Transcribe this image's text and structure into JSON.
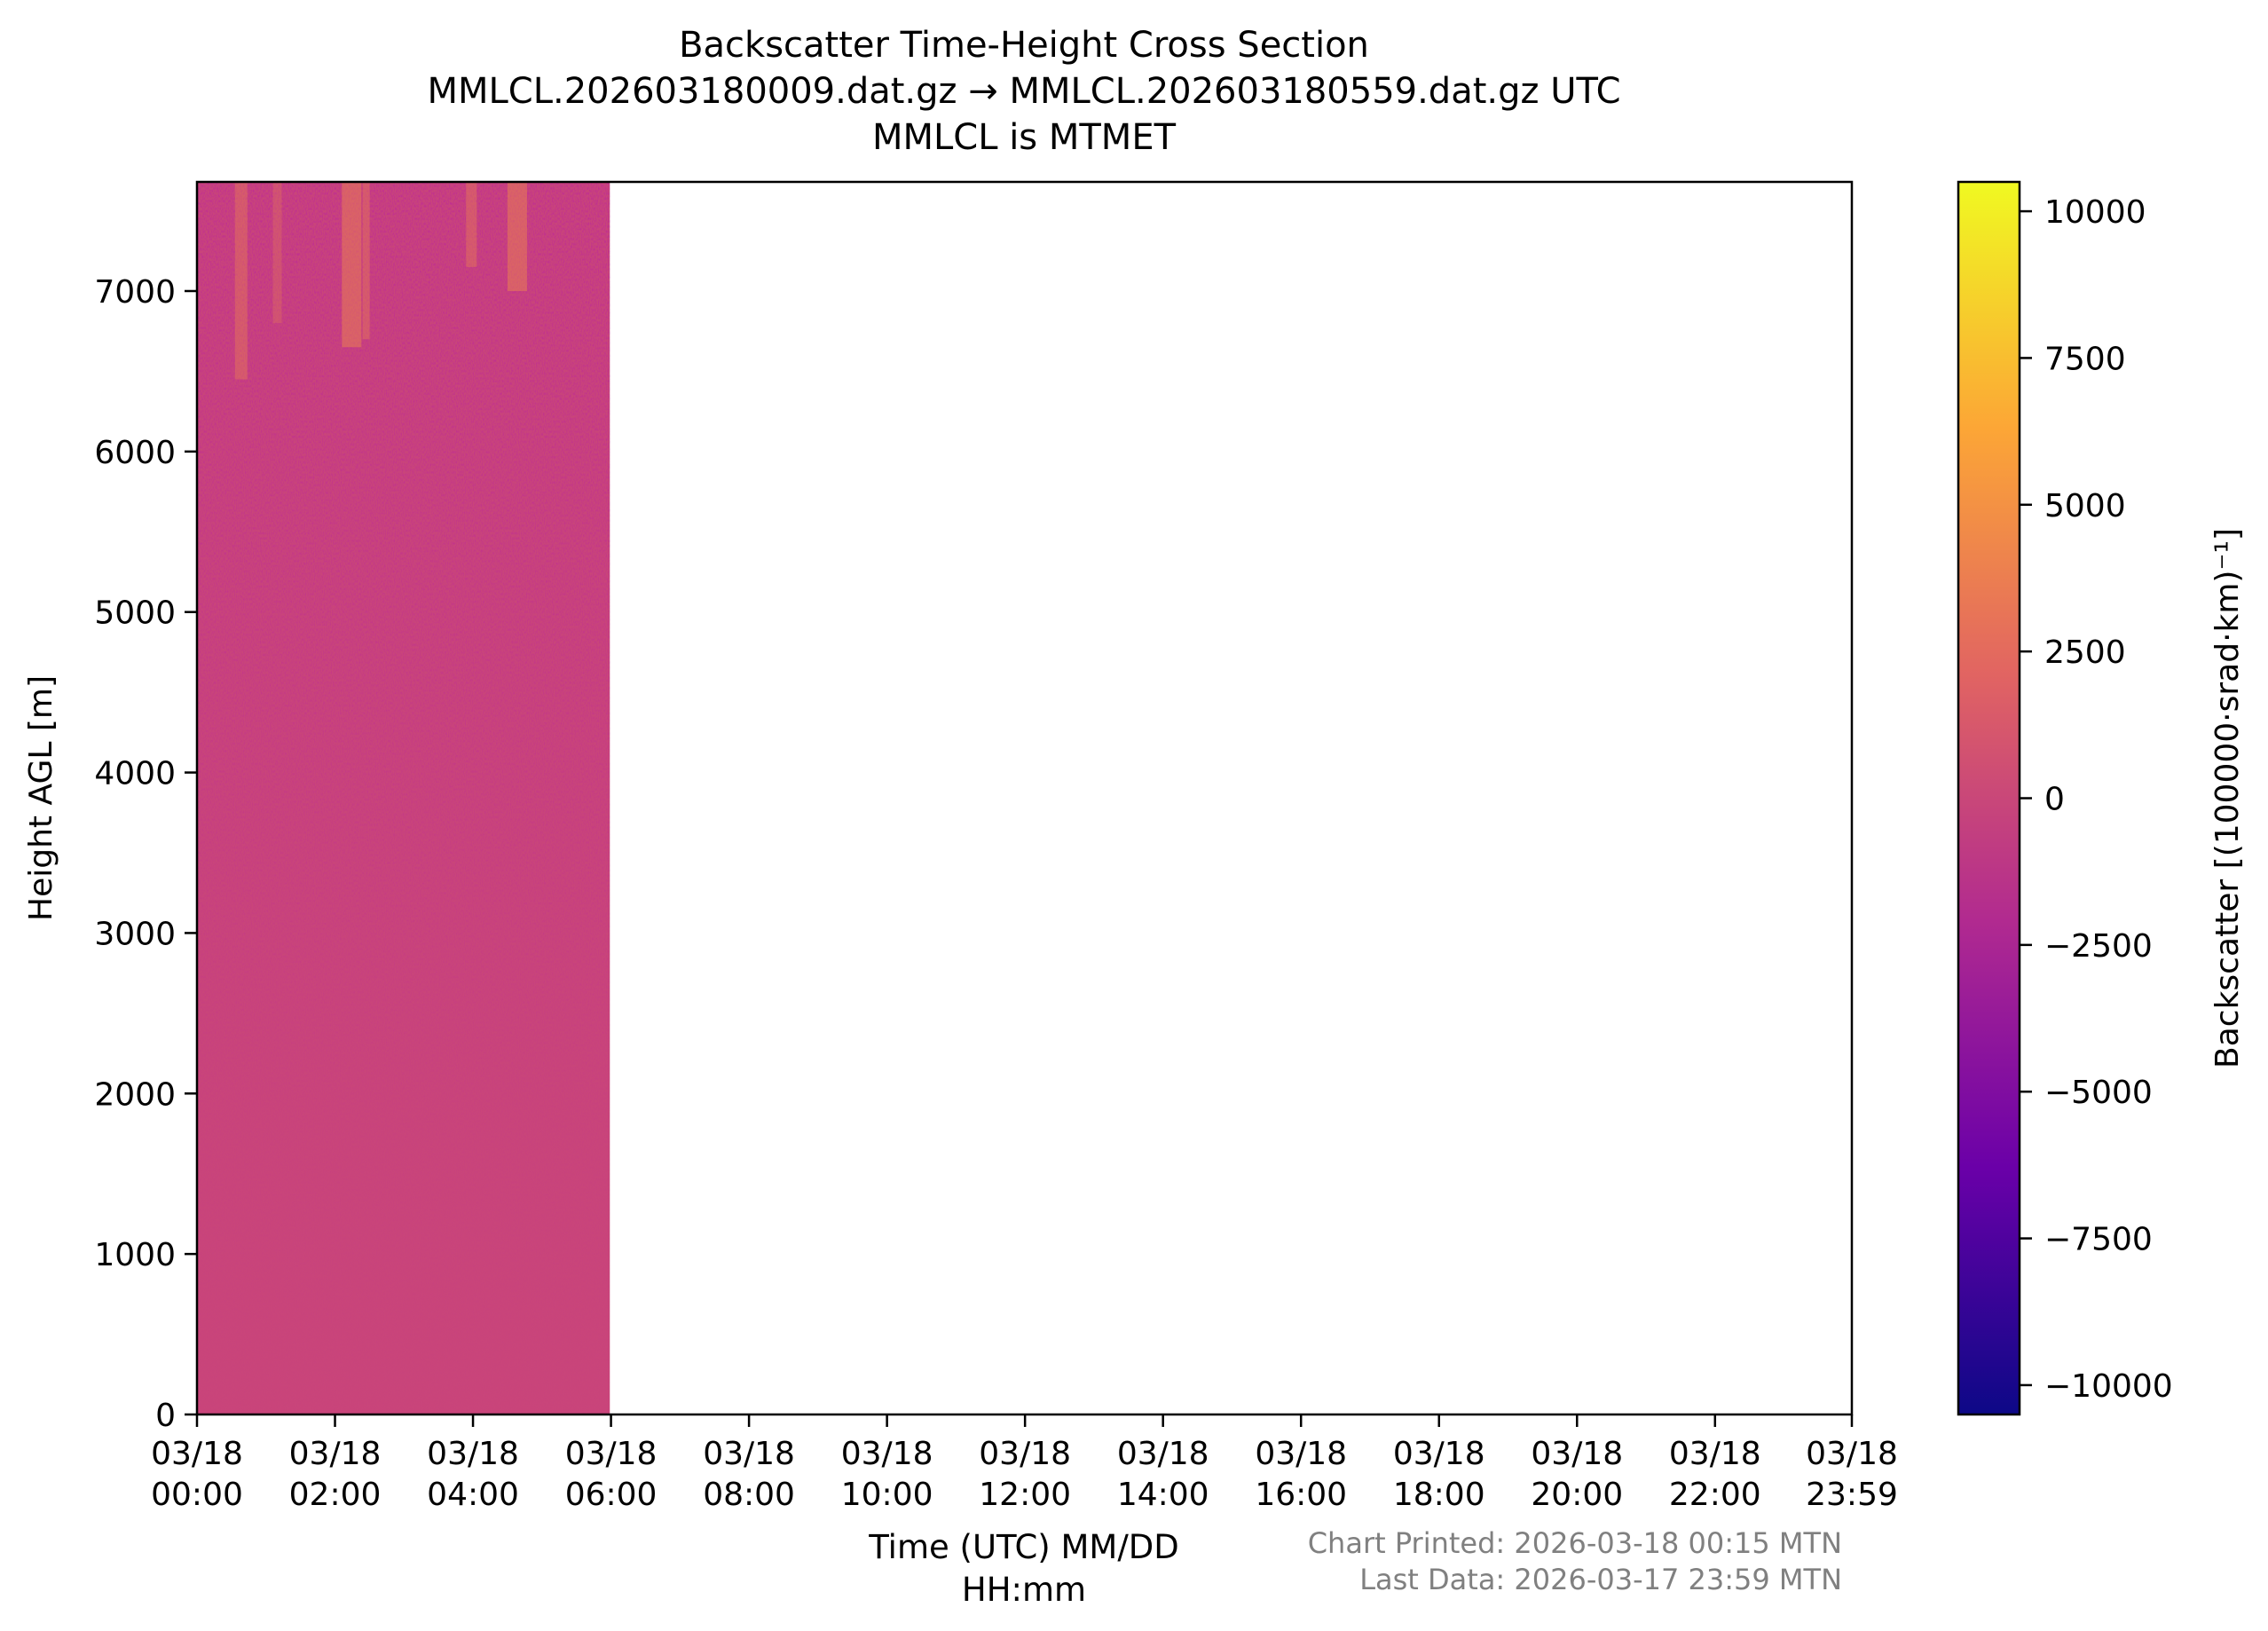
{
  "chart_data": {
    "type": "heatmap",
    "title_lines": [
      "Backscatter Time-Height Cross Section",
      "MMLCL.202603180009.dat.gz → MMLCL.202603180559.dat.gz UTC",
      "MMLCL is MTMET"
    ],
    "xlabel_lines": [
      "Time (UTC) MM/DD",
      "HH:mm"
    ],
    "ylabel": "Height AGL [m]",
    "colorbar_label": "Backscatter [(100000·srad·km)⁻¹]",
    "x_ticks": [
      {
        "hours": 0,
        "date": "03/18",
        "time": "00:00"
      },
      {
        "hours": 2,
        "date": "03/18",
        "time": "02:00"
      },
      {
        "hours": 4,
        "date": "03/18",
        "time": "04:00"
      },
      {
        "hours": 6,
        "date": "03/18",
        "time": "06:00"
      },
      {
        "hours": 8,
        "date": "03/18",
        "time": "08:00"
      },
      {
        "hours": 10,
        "date": "03/18",
        "time": "10:00"
      },
      {
        "hours": 12,
        "date": "03/18",
        "time": "12:00"
      },
      {
        "hours": 14,
        "date": "03/18",
        "time": "14:00"
      },
      {
        "hours": 16,
        "date": "03/18",
        "time": "16:00"
      },
      {
        "hours": 18,
        "date": "03/18",
        "time": "18:00"
      },
      {
        "hours": 20,
        "date": "03/18",
        "time": "20:00"
      },
      {
        "hours": 22,
        "date": "03/18",
        "time": "22:00"
      },
      {
        "hours": 23.983,
        "date": "03/18",
        "time": "23:59"
      }
    ],
    "x_range_hours": [
      0,
      23.983
    ],
    "y_ticks": [
      0,
      1000,
      2000,
      3000,
      4000,
      5000,
      6000,
      7000
    ],
    "y_range": [
      0,
      7680
    ],
    "colorbar_ticks": [
      {
        "value": 10000,
        "label": "10000"
      },
      {
        "value": 7500,
        "label": "7500"
      },
      {
        "value": 5000,
        "label": "5000"
      },
      {
        "value": 2500,
        "label": "2500"
      },
      {
        "value": 0,
        "label": "0"
      },
      {
        "value": -2500,
        "label": "−2500"
      },
      {
        "value": -5000,
        "label": "−5000"
      },
      {
        "value": -7500,
        "label": "−7500"
      },
      {
        "value": -10000,
        "label": "−10000"
      }
    ],
    "colorbar_range": [
      -10500,
      10500
    ],
    "colormap_stops": [
      "#0d0887",
      "#6a00a8",
      "#b12a90",
      "#e16462",
      "#fca636",
      "#f0f921"
    ],
    "data_extent_hours": [
      0,
      5.983
    ],
    "base_color": "#c9457a",
    "grid": false
  },
  "footer": {
    "printed": "Chart Printed: 2026-03-18 00:15 MTN",
    "last_data": "Last Data: 2026-03-17 23:59 MTN",
    "color": "#808080"
  }
}
